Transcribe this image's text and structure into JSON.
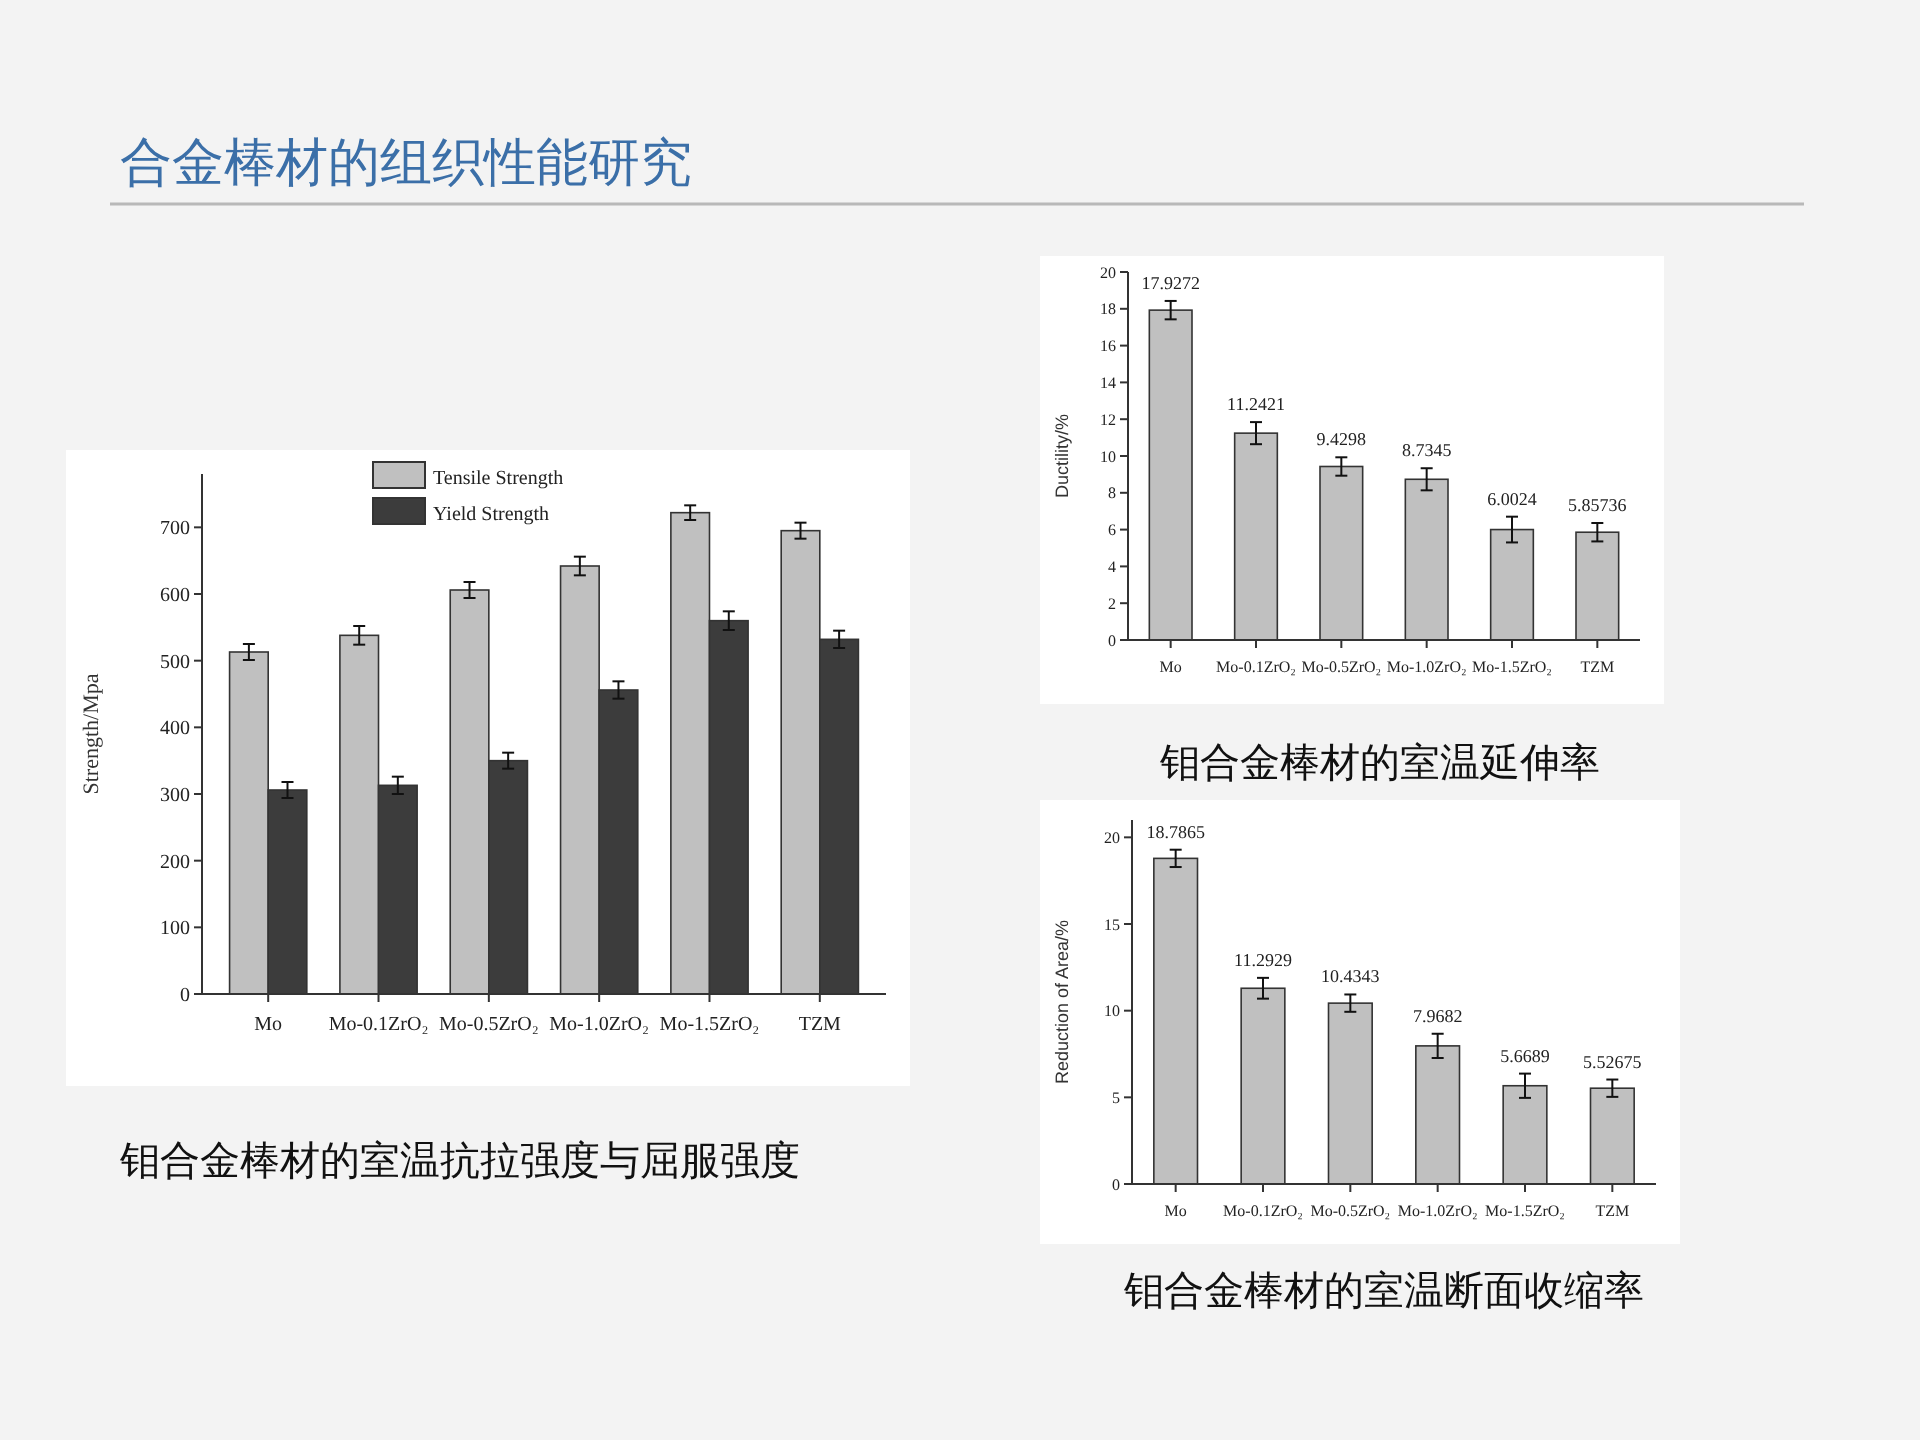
{
  "chart_data": [
    {
      "type": "bar",
      "title": "合金棒材的组织性能研究",
      "annotations": [
        "钼合金棒材的室温抗拉强度与屈服强度"
      ],
      "ylabel": "Strength/Mpa",
      "categories": [
        "Mo",
        "Mo-0.1ZrO₂",
        "Mo-0.5ZrO₂",
        "Mo-1.0ZrO₂",
        "Mo-1.5ZrO₂",
        "TZM"
      ],
      "series": [
        {
          "name": "Tensile Strength",
          "color": "#c0c0c0",
          "values": [
            513,
            538,
            606,
            642,
            722,
            695
          ],
          "errors": [
            12,
            14,
            12,
            14,
            11,
            12
          ]
        },
        {
          "name": "Yield Strength",
          "color": "#3c3c3c",
          "values": [
            306,
            313,
            350,
            456,
            560,
            532
          ],
          "errors": [
            12,
            13,
            12,
            13,
            14,
            13
          ]
        }
      ],
      "ylim": [
        0,
        780
      ],
      "yticks": [
        0,
        100,
        200,
        300,
        400,
        500,
        600,
        700
      ],
      "legend": "top"
    },
    {
      "type": "bar",
      "annotations": [
        "钼合金棒材的室温延伸率"
      ],
      "ylabel": "Ductility/%",
      "categories": [
        "Mo",
        "Mo-0.1ZrO₂",
        "Mo-0.5ZrO₂",
        "Mo-1.0ZrO₂",
        "Mo-1.5ZrO₂",
        "TZM"
      ],
      "values": [
        17.9272,
        11.2421,
        9.4298,
        8.7345,
        6.0024,
        5.85736
      ],
      "errors": [
        0.5,
        0.6,
        0.5,
        0.6,
        0.7,
        0.5
      ],
      "color": "#c0c0c0",
      "data_labels": true,
      "ylim": [
        0,
        20
      ],
      "yticks": [
        0,
        2,
        4,
        6,
        8,
        10,
        12,
        14,
        16,
        18,
        20
      ]
    },
    {
      "type": "bar",
      "annotations": [
        "钼合金棒材的室温断面收缩率"
      ],
      "ylabel": "Reduction of Area/%",
      "categories": [
        "Mo",
        "Mo-0.1ZrO₂",
        "Mo-0.5ZrO₂",
        "Mo-1.0ZrO₂",
        "Mo-1.5ZrO₂",
        "TZM"
      ],
      "values": [
        18.7865,
        11.2929,
        10.4343,
        7.9682,
        5.6689,
        5.52675
      ],
      "errors": [
        0.5,
        0.6,
        0.5,
        0.7,
        0.7,
        0.5
      ],
      "color": "#c0c0c0",
      "data_labels": true,
      "ylim": [
        0,
        21
      ],
      "yticks": [
        0,
        5,
        10,
        15,
        20
      ]
    }
  ]
}
